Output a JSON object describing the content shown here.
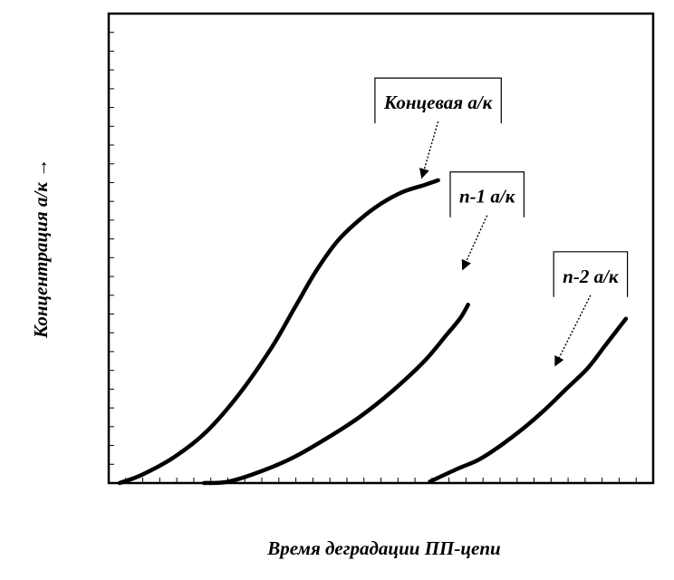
{
  "chart_data": {
    "type": "line",
    "xlabel": "Время деградации ПП-цепи",
    "ylabel": "Концентрация а/к →",
    "xlim": [
      0,
      100
    ],
    "ylim": [
      0,
      100
    ],
    "grid": false,
    "legend": "none",
    "x_tick_count": 32,
    "y_tick_count": 25,
    "line_color": "#000000",
    "series": [
      {
        "name": "Концевая а/к",
        "points": [
          [
            2,
            0
          ],
          [
            6,
            1.7
          ],
          [
            12,
            5.5
          ],
          [
            18,
            11
          ],
          [
            24,
            19
          ],
          [
            30,
            29
          ],
          [
            34,
            37
          ],
          [
            38,
            45
          ],
          [
            42,
            51.5
          ],
          [
            46,
            56
          ],
          [
            50,
            59.5
          ],
          [
            54,
            62
          ],
          [
            58,
            63.5
          ],
          [
            60.5,
            64.5
          ]
        ]
      },
      {
        "name": "n-1 а/к",
        "points": [
          [
            17.5,
            0
          ],
          [
            22,
            0.3
          ],
          [
            28,
            2.5
          ],
          [
            34,
            5.5
          ],
          [
            40,
            9.5
          ],
          [
            46,
            14
          ],
          [
            52,
            19.5
          ],
          [
            58,
            26
          ],
          [
            62,
            31.5
          ],
          [
            64.5,
            35
          ],
          [
            66,
            38
          ]
        ]
      },
      {
        "name": "n-2 а/к",
        "points": [
          [
            59,
            0.3
          ],
          [
            64,
            3
          ],
          [
            68,
            5
          ],
          [
            72,
            8
          ],
          [
            76,
            11.5
          ],
          [
            80,
            15.5
          ],
          [
            84,
            20
          ],
          [
            88,
            24.5
          ],
          [
            91,
            29
          ],
          [
            93,
            32
          ],
          [
            95,
            35
          ]
        ]
      }
    ],
    "annotations": [
      {
        "text": "Концевая а/к",
        "series": 0,
        "arrow_from": [
          60.5,
          77
        ],
        "arrow_to": [
          57.5,
          65
        ]
      },
      {
        "text": "n-1 а/к",
        "series": 1,
        "arrow_from": [
          69.5,
          57
        ],
        "arrow_to": [
          65,
          45.5
        ]
      },
      {
        "text": "n-2 а/к",
        "series": 2,
        "arrow_from": [
          88.5,
          40
        ],
        "arrow_to": [
          82,
          25
        ]
      }
    ]
  }
}
